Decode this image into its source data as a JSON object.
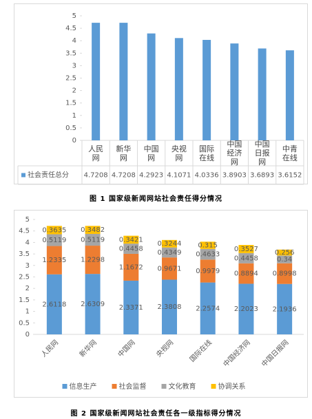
{
  "chart_data": [
    {
      "type": "bar",
      "caption": "图 1   国家级新闻网站社会责任得分情况",
      "categories": [
        "人民网",
        "新华网",
        "中国网",
        "央视网",
        "国际在线",
        "中国经济网",
        "中国日报网",
        "中青在线"
      ],
      "series": [
        {
          "name": "社会责任总分",
          "color": "#5b9bd5",
          "values": [
            4.7208,
            4.7208,
            4.2923,
            4.1071,
            4.0336,
            3.8903,
            3.6893,
            3.6152
          ]
        }
      ],
      "ylim": [
        0,
        5
      ],
      "yticks": [
        0,
        0.5,
        1,
        1.5,
        2,
        2.5,
        3,
        3.5,
        4,
        4.5,
        5
      ],
      "grid": false
    },
    {
      "type": "stacked-bar",
      "caption": "图 2   国家级新闻网站社会责任各一级指标得分情况",
      "categories": [
        "人民网",
        "新华网",
        "中国网",
        "央视网",
        "国际在线",
        "中国经济网",
        "中国日报网"
      ],
      "series": [
        {
          "name": "信息生产",
          "color": "#5b9bd5",
          "values": [
            2.6118,
            2.6309,
            2.3371,
            2.3808,
            2.2574,
            2.2023,
            2.1936
          ]
        },
        {
          "name": "社会监督",
          "color": "#ed7d31",
          "values": [
            1.2335,
            1.2298,
            1.1672,
            0.9671,
            0.9979,
            0.8894,
            0.8998
          ]
        },
        {
          "name": "文化教育",
          "color": "#a5a5a5",
          "values": [
            0.5119,
            0.5119,
            0.4458,
            0.4349,
            0.4633,
            0.4458,
            0.34
          ]
        },
        {
          "name": "协调关系",
          "color": "#ffc000",
          "values": [
            0.3635,
            0.3482,
            0.3421,
            0.3244,
            0.315,
            0.3527,
            0.256
          ]
        }
      ],
      "ylim": [
        0,
        5
      ],
      "yticks": [
        0,
        0.5,
        1,
        1.5,
        2,
        2.5,
        3,
        3.5,
        4,
        4.5,
        5
      ],
      "grid": false
    }
  ]
}
